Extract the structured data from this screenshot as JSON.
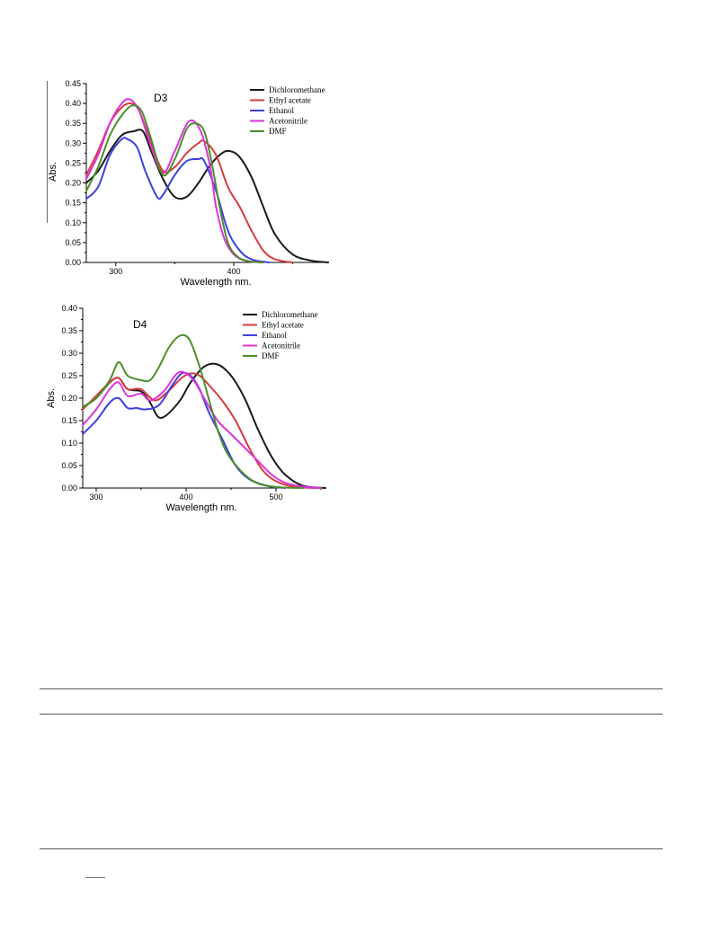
{
  "chart_data": [
    {
      "type": "line",
      "title": "D3",
      "xlabel": "Wavelength nm.",
      "ylabel": "Abs.",
      "xlim": [
        275,
        480
      ],
      "ylim": [
        0,
        0.45
      ],
      "xticks": [
        300,
        400
      ],
      "yticks": [
        0.0,
        0.05,
        0.1,
        0.15,
        0.2,
        0.25,
        0.3,
        0.35,
        0.4,
        0.45
      ],
      "ytick_labels": [
        "0.00",
        "0.05",
        "0.10",
        "0.15",
        "0.20",
        "0.25",
        "0.30",
        "0.35",
        "0.40",
        "0.45"
      ],
      "legend": "top-right",
      "series": [
        {
          "name": "Dichloromethane",
          "color": "#1a1a1a",
          "x": [
            275,
            285,
            295,
            305,
            315,
            323,
            330,
            340,
            350,
            360,
            370,
            380,
            390,
            397,
            405,
            415,
            425,
            435,
            450,
            465,
            480
          ],
          "y": [
            0.2,
            0.23,
            0.28,
            0.32,
            0.33,
            0.33,
            0.28,
            0.21,
            0.165,
            0.165,
            0.2,
            0.245,
            0.275,
            0.28,
            0.265,
            0.215,
            0.14,
            0.07,
            0.02,
            0.005,
            0.0
          ]
        },
        {
          "name": "Ethyl acetate",
          "color": "#d63b3b",
          "x": [
            275,
            285,
            295,
            305,
            313,
            320,
            330,
            340,
            350,
            360,
            370,
            375,
            385,
            395,
            405,
            415,
            425,
            435,
            450
          ],
          "y": [
            0.22,
            0.28,
            0.35,
            0.39,
            0.4,
            0.38,
            0.3,
            0.23,
            0.24,
            0.275,
            0.3,
            0.305,
            0.27,
            0.19,
            0.14,
            0.08,
            0.03,
            0.008,
            0.0
          ]
        },
        {
          "name": "Ethanol",
          "color": "#3f3fe0",
          "x": [
            275,
            285,
            295,
            305,
            310,
            318,
            325,
            335,
            340,
            350,
            360,
            370,
            375,
            385,
            395,
            405,
            415,
            430
          ],
          "y": [
            0.16,
            0.19,
            0.27,
            0.31,
            0.31,
            0.29,
            0.23,
            0.165,
            0.17,
            0.22,
            0.255,
            0.26,
            0.255,
            0.18,
            0.08,
            0.03,
            0.008,
            0.0
          ]
        },
        {
          "name": "Acetonitrile",
          "color": "#dd33dd",
          "x": [
            275,
            285,
            295,
            305,
            312,
            320,
            330,
            340,
            350,
            362,
            372,
            380,
            385,
            392,
            400,
            410,
            425
          ],
          "y": [
            0.21,
            0.27,
            0.35,
            0.4,
            0.41,
            0.38,
            0.29,
            0.225,
            0.28,
            0.355,
            0.33,
            0.24,
            0.14,
            0.06,
            0.02,
            0.005,
            0.0
          ]
        },
        {
          "name": "DMF",
          "color": "#4a8f2a",
          "x": [
            275,
            285,
            295,
            305,
            314,
            322,
            330,
            340,
            350,
            360,
            367,
            375,
            382,
            388,
            395,
            403,
            412,
            425
          ],
          "y": [
            0.18,
            0.24,
            0.32,
            0.37,
            0.395,
            0.38,
            0.31,
            0.22,
            0.26,
            0.335,
            0.35,
            0.33,
            0.24,
            0.14,
            0.05,
            0.015,
            0.003,
            0.0
          ]
        }
      ]
    },
    {
      "type": "line",
      "title": "D4",
      "xlabel": "Wavelength nm.",
      "ylabel": "Abs.",
      "xlim": [
        285,
        555
      ],
      "ylim": [
        0,
        0.4
      ],
      "xticks": [
        300,
        400,
        500
      ],
      "yticks": [
        0.0,
        0.05,
        0.1,
        0.15,
        0.2,
        0.25,
        0.3,
        0.35,
        0.4
      ],
      "ytick_labels": [
        "0.00",
        "0.05",
        "0.10",
        "0.15",
        "0.20",
        "0.25",
        "0.30",
        "0.35",
        "0.40"
      ],
      "legend": "top-right",
      "series": [
        {
          "name": "Dichloromethane",
          "color": "#1a1a1a",
          "x": [
            285,
            300,
            315,
            325,
            335,
            350,
            360,
            368,
            375,
            385,
            395,
            405,
            420,
            435,
            450,
            465,
            480,
            495,
            510,
            530,
            555
          ],
          "y": [
            0.18,
            0.2,
            0.235,
            0.245,
            0.22,
            0.215,
            0.19,
            0.16,
            0.158,
            0.175,
            0.2,
            0.235,
            0.27,
            0.275,
            0.25,
            0.2,
            0.13,
            0.07,
            0.03,
            0.005,
            0.0
          ]
        },
        {
          "name": "Ethyl acetate",
          "color": "#d63b3b",
          "x": [
            285,
            300,
            315,
            325,
            335,
            350,
            365,
            380,
            395,
            405,
            415,
            425,
            440,
            455,
            470,
            485,
            500,
            520,
            545
          ],
          "y": [
            0.175,
            0.205,
            0.235,
            0.245,
            0.22,
            0.22,
            0.195,
            0.215,
            0.245,
            0.255,
            0.25,
            0.23,
            0.195,
            0.15,
            0.09,
            0.04,
            0.015,
            0.003,
            0.0
          ]
        },
        {
          "name": "Ethanol",
          "color": "#3f3fe0",
          "x": [
            285,
            300,
            315,
            325,
            335,
            345,
            355,
            370,
            385,
            395,
            405,
            415,
            425,
            440,
            455,
            470,
            490,
            510
          ],
          "y": [
            0.12,
            0.15,
            0.19,
            0.2,
            0.178,
            0.178,
            0.175,
            0.185,
            0.23,
            0.255,
            0.25,
            0.22,
            0.17,
            0.11,
            0.05,
            0.02,
            0.005,
            0.0
          ]
        },
        {
          "name": "Acetonitrile",
          "color": "#dd33dd",
          "x": [
            285,
            300,
            315,
            325,
            335,
            350,
            360,
            375,
            390,
            400,
            410,
            420,
            435,
            450,
            465,
            480,
            495,
            510,
            530,
            550
          ],
          "y": [
            0.14,
            0.175,
            0.22,
            0.235,
            0.205,
            0.21,
            0.195,
            0.215,
            0.255,
            0.255,
            0.235,
            0.2,
            0.15,
            0.12,
            0.09,
            0.06,
            0.03,
            0.012,
            0.003,
            0.0
          ]
        },
        {
          "name": "DMF",
          "color": "#4a8f2a",
          "x": [
            285,
            300,
            315,
            325,
            335,
            350,
            360,
            370,
            380,
            390,
            398,
            405,
            415,
            425,
            435,
            445,
            460,
            475,
            490,
            510,
            530
          ],
          "y": [
            0.18,
            0.2,
            0.24,
            0.28,
            0.25,
            0.24,
            0.24,
            0.27,
            0.31,
            0.335,
            0.34,
            0.325,
            0.27,
            0.2,
            0.13,
            0.08,
            0.04,
            0.015,
            0.005,
            0.001,
            0.0
          ]
        }
      ]
    }
  ]
}
